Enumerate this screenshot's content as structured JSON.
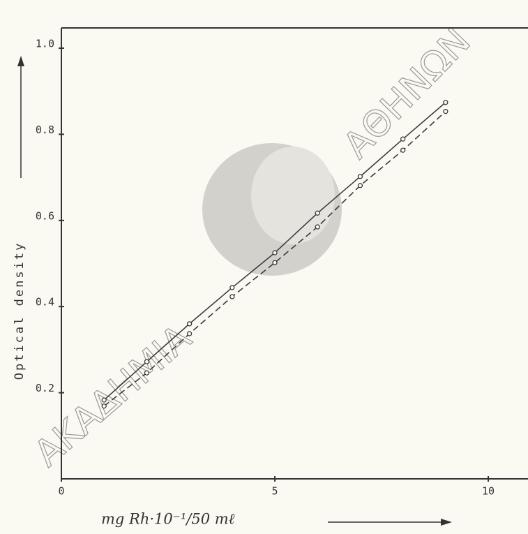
{
  "chart_data": {
    "type": "line",
    "x_label": "mg Rh·10⁻¹/50 mℓ",
    "y_label": "Optical density",
    "watermark": [
      "ΑΚΑΔΗΜΙΑ",
      "ΑΘΗΝΩΝ"
    ],
    "x": [
      1,
      2,
      3,
      4,
      5,
      6,
      7,
      8,
      9
    ],
    "series": [
      {
        "color": "#3a3a3a",
        "dashed": false,
        "values": [
          0.183,
          0.272,
          0.36,
          0.444,
          0.525,
          0.617,
          0.702,
          0.789,
          0.874
        ]
      },
      {
        "color": "#3a3a3a",
        "dashed": true,
        "values": [
          0.169,
          0.246,
          0.337,
          0.423,
          0.502,
          0.585,
          0.681,
          0.763,
          0.853
        ]
      }
    ],
    "xlim": [
      0,
      10.93
    ],
    "xticks": [
      0,
      5,
      10
    ],
    "ylim": [
      0,
      1.047
    ],
    "yticks": [
      0.2,
      0.4,
      0.6,
      0.8,
      {
        "value": 1,
        "label": "1.0"
      }
    ]
  }
}
